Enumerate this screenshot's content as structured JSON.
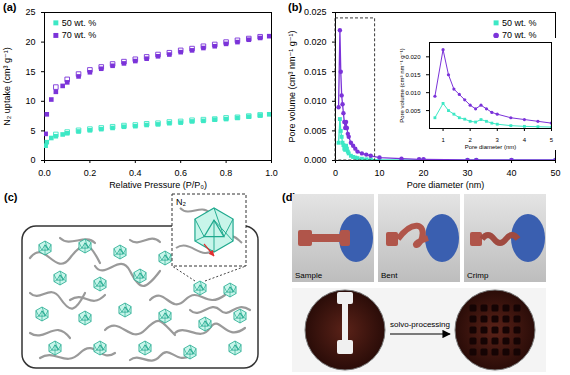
{
  "chart_data": [
    {
      "type": "scatter",
      "title": "(a)",
      "xlabel": "Relative Pressure (P/P₀)",
      "ylabel": "N₂ uptake (cm³ g⁻¹)",
      "xlim": [
        0,
        1
      ],
      "ylim": [
        0,
        25
      ],
      "xticks": [
        {
          "value": 0,
          "label": "0.0"
        },
        0.2,
        0.4,
        0.6,
        0.8,
        {
          "value": 1,
          "label": "1.0"
        }
      ],
      "yticks": [
        0,
        5,
        10,
        15,
        20,
        25
      ],
      "grid": false,
      "legend": "top-left",
      "series": [
        {
          "name": "50 wt. %",
          "color": "#3de8c5",
          "marker": "square",
          "x": [
            0.005,
            0.01,
            0.03,
            0.05,
            0.08,
            0.1,
            0.15,
            0.2,
            0.25,
            0.3,
            0.35,
            0.4,
            0.45,
            0.5,
            0.55,
            0.6,
            0.65,
            0.7,
            0.75,
            0.8,
            0.85,
            0.9,
            0.95,
            0.99
          ],
          "values": [
            2.5,
            3.1,
            3.8,
            4.1,
            4.4,
            4.6,
            4.9,
            5.1,
            5.3,
            5.5,
            5.7,
            5.8,
            6.0,
            6.1,
            6.3,
            6.4,
            6.6,
            6.7,
            6.9,
            7.0,
            7.2,
            7.4,
            7.6,
            7.8
          ],
          "desorption_x": [
            0.95,
            0.9,
            0.85,
            0.8,
            0.75,
            0.7,
            0.65,
            0.6,
            0.55,
            0.5,
            0.45,
            0.4,
            0.35,
            0.3,
            0.25,
            0.2,
            0.15,
            0.1,
            0.05
          ],
          "desorption": [
            7.7,
            7.5,
            7.3,
            7.2,
            7.0,
            6.9,
            6.8,
            6.6,
            6.5,
            6.3,
            6.2,
            6.0,
            5.9,
            5.7,
            5.5,
            5.3,
            5.1,
            4.8,
            4.4
          ]
        },
        {
          "name": "70 wt. %",
          "color": "#7b33d9",
          "marker": "square",
          "x": [
            0.005,
            0.01,
            0.03,
            0.05,
            0.08,
            0.1,
            0.15,
            0.2,
            0.25,
            0.3,
            0.35,
            0.4,
            0.45,
            0.5,
            0.55,
            0.6,
            0.65,
            0.7,
            0.75,
            0.8,
            0.85,
            0.9,
            0.95,
            0.99
          ],
          "values": [
            4.5,
            7.8,
            10.3,
            11.6,
            12.6,
            13.2,
            14.2,
            14.9,
            15.5,
            16.0,
            16.4,
            16.8,
            17.2,
            17.6,
            17.9,
            18.3,
            18.6,
            19.0,
            19.3,
            19.7,
            20.0,
            20.4,
            20.7,
            21.0
          ],
          "desorption_x": [
            0.95,
            0.9,
            0.85,
            0.8,
            0.75,
            0.7,
            0.65,
            0.6,
            0.55,
            0.5,
            0.45,
            0.4,
            0.35,
            0.3,
            0.25,
            0.2,
            0.15,
            0.1,
            0.05
          ],
          "desorption": [
            20.9,
            20.6,
            20.3,
            20.0,
            19.6,
            19.3,
            18.9,
            18.6,
            18.2,
            17.9,
            17.5,
            17.1,
            16.7,
            16.3,
            15.8,
            15.3,
            14.6,
            13.7,
            12.4
          ]
        }
      ]
    },
    {
      "type": "line",
      "title": "(b)",
      "xlabel": "Pore diameter (nm)",
      "ylabel": "Pore volume (cm³ nm⁻¹ g⁻¹)",
      "xlim": [
        0,
        50
      ],
      "ylim": [
        0,
        0.025
      ],
      "xticks": [
        0,
        10,
        20,
        30,
        40,
        50
      ],
      "yticks": [
        {
          "value": 0,
          "label": "0.000"
        },
        0.005,
        {
          "value": 0.01,
          "label": "0.010"
        },
        0.015,
        {
          "value": 0.02,
          "label": "0.020"
        },
        0.025
      ],
      "grid": false,
      "legend": "top-right",
      "zoom_box": {
        "xlim": [
          0,
          9
        ],
        "ylim": [
          0,
          0.024
        ]
      },
      "series": [
        {
          "name": "50 wt. %",
          "color": "#3de8c5",
          "marker": "square",
          "line_style": "solid",
          "x": [
            0.7,
            1.0,
            1.2,
            1.4,
            1.6,
            1.8,
            2.0,
            2.2,
            2.4,
            2.6,
            2.8,
            3.0,
            3.5,
            4.0,
            4.5,
            5.0,
            6,
            7,
            8,
            10,
            15,
            19,
            20,
            30,
            32,
            40,
            50
          ],
          "values": [
            0.003,
            0.007,
            0.005,
            0.004,
            0.003,
            0.0026,
            0.002,
            0.0018,
            0.0025,
            0.002,
            0.0015,
            0.0012,
            0.0008,
            0.0006,
            0.0005,
            0.0004,
            0.0003,
            0.0002,
            0.0002,
            0.0001,
            0.0001,
            0.0001,
            0.0001,
            5e-05,
            5e-05,
            5e-05,
            5e-05
          ]
        },
        {
          "name": "70 wt. %",
          "color": "#7b33d9",
          "marker": "circle",
          "line_style": "solid",
          "x": [
            0.7,
            1.0,
            1.2,
            1.4,
            1.6,
            1.8,
            2.0,
            2.2,
            2.4,
            2.6,
            2.8,
            3.0,
            3.5,
            4.0,
            4.5,
            5.0,
            6,
            7,
            8,
            10,
            15,
            19,
            20,
            30,
            32,
            40,
            50
          ],
          "values": [
            0.009,
            0.022,
            0.015,
            0.011,
            0.0095,
            0.008,
            0.0065,
            0.0055,
            0.0065,
            0.0055,
            0.0045,
            0.004,
            0.003,
            0.0025,
            0.002,
            0.0015,
            0.0012,
            0.001,
            0.0008,
            0.0005,
            0.0003,
            0.0002,
            0.0002,
            0.0001,
            0.0001,
            0.0001,
            0.0001
          ]
        }
      ]
    },
    {
      "type": "line",
      "xlabel": "Pore diameter (nm)",
      "ylabel": "Pore volume (cm³ nm⁻¹ g⁻¹)",
      "xlim": [
        0.5,
        5
      ],
      "ylim": [
        0,
        0.024
      ],
      "xticks": [
        1,
        2,
        3,
        4,
        5
      ],
      "yticks": [
        0.005,
        {
          "value": 0.01,
          "label": "0.010"
        },
        0.015,
        {
          "value": 0.02,
          "label": "0.020"
        }
      ],
      "grid": false,
      "series": [
        {
          "name": "50 wt. %",
          "color": "#3de8c5",
          "marker": "square",
          "line_style": "solid",
          "x": [
            0.7,
            1.0,
            1.2,
            1.4,
            1.6,
            1.8,
            2.0,
            2.2,
            2.4,
            2.6,
            2.8,
            3.0,
            3.5,
            4.0,
            4.5,
            5.0
          ],
          "values": [
            0.003,
            0.007,
            0.005,
            0.004,
            0.003,
            0.0026,
            0.002,
            0.0018,
            0.0025,
            0.002,
            0.0015,
            0.0012,
            0.0008,
            0.0006,
            0.0005,
            0.0004
          ]
        },
        {
          "name": "70 wt. %",
          "color": "#7b33d9",
          "marker": "circle",
          "line_style": "solid",
          "x": [
            0.7,
            1.0,
            1.2,
            1.4,
            1.6,
            1.8,
            2.0,
            2.2,
            2.4,
            2.6,
            2.8,
            3.0,
            3.5,
            4.0,
            4.5,
            5.0
          ],
          "values": [
            0.009,
            0.022,
            0.015,
            0.011,
            0.0095,
            0.008,
            0.0065,
            0.0055,
            0.0065,
            0.0055,
            0.0045,
            0.004,
            0.003,
            0.0025,
            0.002,
            0.0015
          ]
        }
      ]
    }
  ],
  "diagram": {
    "label": "(c)",
    "zoom_label": "N₂"
  },
  "photos": {
    "label": "(d)",
    "captions": [
      "Sample",
      "Bent",
      "Crimp"
    ],
    "arrow_label": "solvo-processing"
  }
}
